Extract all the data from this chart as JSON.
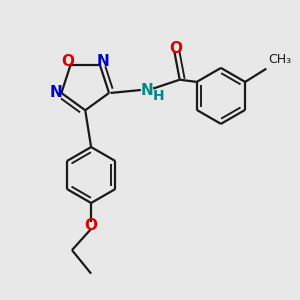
{
  "background_color": "#e8e8e8",
  "bond_color": "#1a1a1a",
  "bond_width": 1.6,
  "figsize": [
    3.0,
    3.0
  ],
  "dpi": 100,
  "xlim": [
    0,
    10
  ],
  "ylim": [
    0,
    10
  ]
}
